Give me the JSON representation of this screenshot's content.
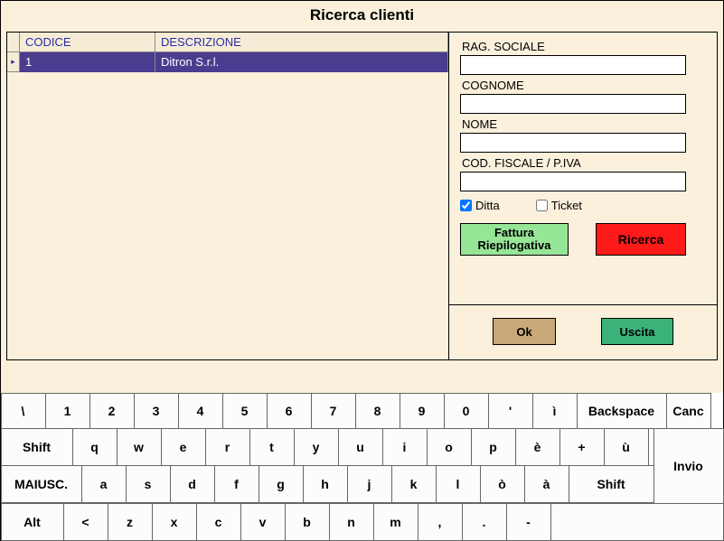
{
  "title": "Ricerca clienti",
  "table": {
    "headers": {
      "code": "CODICE",
      "desc": "DESCRIZIONE"
    },
    "rows": [
      {
        "marker": "▸",
        "code": "1",
        "desc": "Ditron S.r.l."
      }
    ]
  },
  "form": {
    "rag_sociale": {
      "label": "RAG. SOCIALE",
      "value": ""
    },
    "cognome": {
      "label": "COGNOME",
      "value": ""
    },
    "nome": {
      "label": "NOME",
      "value": ""
    },
    "cod_fiscale": {
      "label": "COD. FISCALE / P.IVA",
      "value": ""
    },
    "ditta": {
      "label": "Ditta",
      "checked": true
    },
    "ticket": {
      "label": "Ticket",
      "checked": false
    }
  },
  "buttons": {
    "fattura_l1": "Fattura",
    "fattura_l2": "Riepilogativa",
    "ricerca": "Ricerca",
    "ok": "Ok",
    "uscita": "Uscita"
  },
  "keyboard": {
    "row0": [
      "\\",
      "1",
      "2",
      "3",
      "4",
      "5",
      "6",
      "7",
      "8",
      "9",
      "0",
      "'",
      "ì"
    ],
    "row0_bksp": "Backspace",
    "row0_canc": "Canc",
    "row1_shift": "Shift",
    "row1": [
      "q",
      "w",
      "e",
      "r",
      "t",
      "y",
      "u",
      "i",
      "o",
      "p",
      "è",
      "+",
      "ù"
    ],
    "row_invio": "Invio",
    "row2_maiusc": "MAIUSC.",
    "row2": [
      "a",
      "s",
      "d",
      "f",
      "g",
      "h",
      "j",
      "k",
      "l",
      "ò",
      "à"
    ],
    "row2_shift": "Shift",
    "row3_alt": "Alt",
    "row3": [
      "<",
      "z",
      "x",
      "c",
      "v",
      "b",
      "n",
      "m",
      ",",
      ".",
      "-"
    ]
  }
}
